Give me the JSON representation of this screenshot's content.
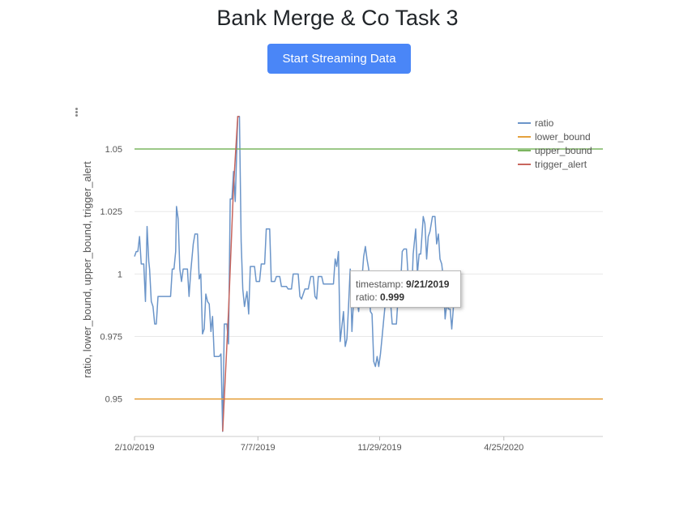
{
  "page": {
    "title": "Bank Merge & Co Task 3",
    "button_label": "Start Streaming Data"
  },
  "tooltip": {
    "timestamp_label": "timestamp:",
    "timestamp_value": "9/21/2019",
    "ratio_label": "ratio:",
    "ratio_value": "0.999"
  },
  "chart_data": {
    "type": "line",
    "title": "",
    "xlabel": "",
    "ylabel": "ratio, lower_bound, upper_bound, trigger_alert",
    "x_ticks": [
      "2/10/2019",
      "7/7/2019",
      "11/29/2019",
      "4/25/2020"
    ],
    "y_ticks": [
      "0.95",
      "0.975",
      "1",
      "1.025",
      "1.05"
    ],
    "xlim": [
      "2/10/2019",
      "8/21/2020"
    ],
    "ylim": [
      0.935,
      1.062
    ],
    "legend_position": "top-right",
    "grid": "horizontal",
    "colors": {
      "ratio": "#6b95c9",
      "lower_bound": "#e5a13d",
      "upper_bound": "#7cb560",
      "trigger_alert": "#c8655d"
    },
    "series": [
      {
        "name": "ratio",
        "points": [
          [
            "2/10/2019",
            1.007
          ],
          [
            "2/12/2019",
            1.009
          ],
          [
            "2/14/2019",
            1.009
          ],
          [
            "2/16/2019",
            1.015
          ],
          [
            "2/18/2019",
            1.004
          ],
          [
            "2/21/2019",
            1.004
          ],
          [
            "2/23/2019",
            0.989
          ],
          [
            "2/25/2019",
            1.019
          ],
          [
            "2/27/2019",
            1.005
          ],
          [
            "2/28/2019",
            1.002
          ],
          [
            "3/2/2019",
            0.989
          ],
          [
            "3/4/2019",
            0.987
          ],
          [
            "3/6/2019",
            0.98
          ],
          [
            "3/8/2019",
            0.98
          ],
          [
            "3/10/2019",
            0.991
          ],
          [
            "3/14/2019",
            0.991
          ],
          [
            "3/20/2019",
            0.991
          ],
          [
            "3/25/2019",
            0.991
          ],
          [
            "3/27/2019",
            1.002
          ],
          [
            "3/29/2019",
            1.002
          ],
          [
            "3/31/2019",
            1.009
          ],
          [
            "4/1/2019",
            1.027
          ],
          [
            "4/3/2019",
            1.022
          ],
          [
            "4/5/2019",
            1.002
          ],
          [
            "4/7/2019",
            0.997
          ],
          [
            "4/9/2019",
            1.002
          ],
          [
            "4/14/2019",
            1.002
          ],
          [
            "4/16/2019",
            0.991
          ],
          [
            "4/18/2019",
            1.001
          ],
          [
            "4/21/2019",
            1.012
          ],
          [
            "4/23/2019",
            1.016
          ],
          [
            "4/26/2019",
            1.016
          ],
          [
            "4/28/2019",
            0.998
          ],
          [
            "4/30/2019",
            1.0
          ],
          [
            "5/2/2019",
            0.976
          ],
          [
            "5/4/2019",
            0.978
          ],
          [
            "5/6/2019",
            0.992
          ],
          [
            "5/8/2019",
            0.989
          ],
          [
            "5/10/2019",
            0.988
          ],
          [
            "5/12/2019",
            0.977
          ],
          [
            "5/14/2019",
            0.983
          ],
          [
            "5/16/2019",
            0.967
          ],
          [
            "5/22/2019",
            0.967
          ],
          [
            "5/24/2019",
            0.968
          ],
          [
            "5/26/2019",
            0.937
          ],
          [
            "5/28/2019",
            0.98
          ],
          [
            "5/31/2019",
            0.98
          ],
          [
            "6/2/2019",
            0.972
          ],
          [
            "6/4/2019",
            1.03
          ],
          [
            "6/6/2019",
            1.03
          ],
          [
            "6/8/2019",
            1.041
          ],
          [
            "6/10/2019",
            1.029
          ],
          [
            "6/11/2019",
            1.04
          ],
          [
            "6/13/2019",
            1.063
          ],
          [
            "6/15/2019",
            1.063
          ],
          [
            "6/17/2019",
            1.013
          ],
          [
            "6/19/2019",
            0.994
          ],
          [
            "6/21/2019",
            0.987
          ],
          [
            "6/24/2019",
            0.993
          ],
          [
            "6/26/2019",
            0.984
          ],
          [
            "6/28/2019",
            1.003
          ],
          [
            "7/3/2019",
            1.003
          ],
          [
            "7/5/2019",
            0.997
          ],
          [
            "7/9/2019",
            0.997
          ],
          [
            "7/11/2019",
            1.004
          ],
          [
            "7/15/2019",
            1.004
          ],
          [
            "7/17/2019",
            1.018
          ],
          [
            "7/21/2019",
            1.018
          ],
          [
            "7/23/2019",
            0.997
          ],
          [
            "7/27/2019",
            0.997
          ],
          [
            "7/29/2019",
            0.999
          ],
          [
            "8/2/2019",
            0.999
          ],
          [
            "8/4/2019",
            0.995
          ],
          [
            "8/10/2019",
            0.995
          ],
          [
            "8/12/2019",
            0.994
          ],
          [
            "8/16/2019",
            0.994
          ],
          [
            "8/18/2019",
            1.0
          ],
          [
            "8/24/2019",
            1.0
          ],
          [
            "8/26/2019",
            0.991
          ],
          [
            "8/28/2019",
            0.99
          ],
          [
            "9/1/2019",
            0.994
          ],
          [
            "9/5/2019",
            0.994
          ],
          [
            "9/8/2019",
            0.999
          ],
          [
            "9/11/2019",
            0.999
          ],
          [
            "9/13/2019",
            0.991
          ],
          [
            "9/15/2019",
            0.99
          ],
          [
            "9/17/2019",
            0.999
          ],
          [
            "9/21/2019",
            0.999
          ],
          [
            "9/23/2019",
            0.996
          ],
          [
            "10/5/2019",
            0.996
          ],
          [
            "10/7/2019",
            1.006
          ],
          [
            "10/9/2019",
            1.003
          ],
          [
            "10/11/2019",
            1.009
          ],
          [
            "10/13/2019",
            0.973
          ],
          [
            "10/15/2019",
            0.979
          ],
          [
            "10/17/2019",
            0.985
          ],
          [
            "10/19/2019",
            0.971
          ],
          [
            "10/21/2019",
            0.974
          ],
          [
            "10/23/2019",
            0.987
          ],
          [
            "10/25/2019",
            1.002
          ],
          [
            "10/27/2019",
            0.977
          ],
          [
            "10/29/2019",
            0.99
          ],
          [
            "11/2/2019",
            0.99
          ],
          [
            "11/4/2019",
            0.985
          ],
          [
            "11/6/2019",
            0.995
          ],
          [
            "11/8/2019",
            0.998
          ],
          [
            "11/10/2019",
            1.007
          ],
          [
            "11/12/2019",
            1.011
          ],
          [
            "11/14/2019",
            1.006
          ],
          [
            "11/16/2019",
            1.002
          ],
          [
            "11/18/2019",
            0.985
          ],
          [
            "11/20/2019",
            0.984
          ],
          [
            "11/22/2019",
            0.965
          ],
          [
            "11/24/2019",
            0.963
          ],
          [
            "11/26/2019",
            0.967
          ],
          [
            "11/28/2019",
            0.963
          ],
          [
            "11/30/2019",
            0.968
          ],
          [
            "12/2/2019",
            0.975
          ],
          [
            "12/4/2019",
            0.982
          ],
          [
            "12/6/2019",
            0.989
          ],
          [
            "12/8/2019",
            0.989
          ],
          [
            "12/12/2019",
            0.989
          ],
          [
            "12/14/2019",
            0.98
          ],
          [
            "12/19/2019",
            0.98
          ],
          [
            "12/21/2019",
            0.991
          ],
          [
            "12/24/2019",
            0.996
          ],
          [
            "12/26/2019",
            1.009
          ],
          [
            "12/28/2019",
            1.01
          ],
          [
            "12/31/2019",
            1.01
          ],
          [
            "1/2/2020",
            0.999
          ],
          [
            "1/4/2020",
            0.994
          ],
          [
            "1/6/2020",
            0.99
          ],
          [
            "1/8/2020",
            1.008
          ],
          [
            "1/11/2020",
            1.018
          ],
          [
            "1/13/2020",
            1.0
          ],
          [
            "1/15/2020",
            1.008
          ],
          [
            "1/17/2020",
            1.008
          ],
          [
            "1/20/2020",
            1.023
          ],
          [
            "1/22/2020",
            1.02
          ],
          [
            "1/24/2020",
            1.006
          ],
          [
            "1/26/2020",
            1.015
          ],
          [
            "1/28/2020",
            1.017
          ],
          [
            "1/31/2020",
            1.023
          ],
          [
            "2/3/2020",
            1.023
          ],
          [
            "2/5/2020",
            1.012
          ],
          [
            "2/7/2020",
            1.016
          ],
          [
            "2/9/2020",
            1.006
          ],
          [
            "2/11/2020",
            1.004
          ],
          [
            "2/13/2020",
            0.998
          ],
          [
            "2/15/2020",
            0.982
          ],
          [
            "2/17/2020",
            0.988
          ],
          [
            "2/19/2020",
            0.986
          ],
          [
            "2/21/2020",
            0.986
          ],
          [
            "2/23/2020",
            0.978
          ],
          [
            "2/25/2020",
            0.987
          ],
          [
            "2/27/2020",
            0.995
          ]
        ]
      },
      {
        "name": "lower_bound",
        "points": [
          [
            "2/10/2019",
            0.95
          ],
          [
            "8/21/2020",
            0.95
          ]
        ]
      },
      {
        "name": "upper_bound",
        "points": [
          [
            "2/10/2019",
            1.05
          ],
          [
            "8/21/2020",
            1.05
          ]
        ]
      },
      {
        "name": "trigger_alert",
        "points": [
          [
            "5/26/2019",
            0.937
          ],
          [
            "6/2/2019",
            0.985
          ],
          [
            "6/8/2019",
            1.035
          ],
          [
            "6/13/2019",
            1.063
          ],
          [
            "6/15/2019",
            1.063
          ]
        ]
      }
    ]
  }
}
